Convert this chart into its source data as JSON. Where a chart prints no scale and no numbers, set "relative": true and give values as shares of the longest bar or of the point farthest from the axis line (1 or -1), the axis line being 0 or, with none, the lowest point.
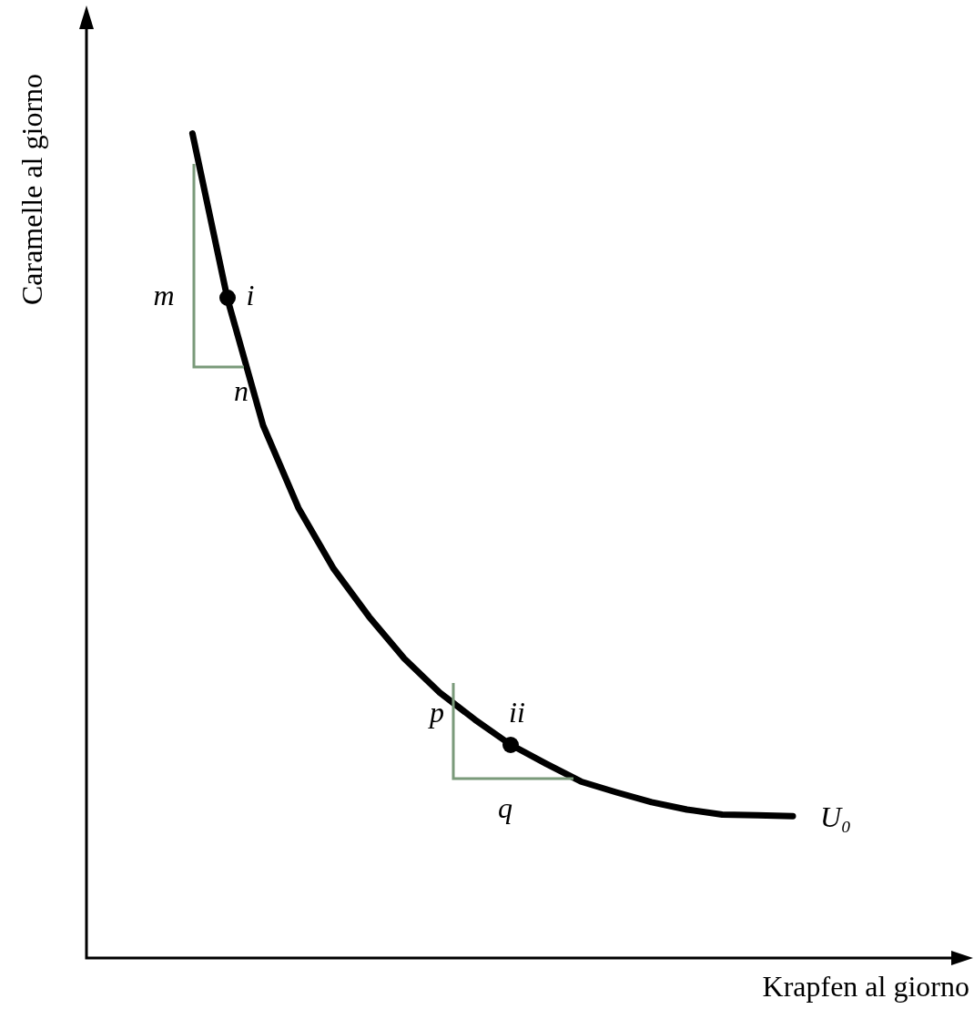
{
  "chart_data": {
    "type": "line",
    "relative": true,
    "xlabel": "Krapfen al giorno",
    "ylabel": "Caramelle al giorno",
    "marker": "none",
    "line_style": "solid",
    "categories": [
      null,
      null,
      null,
      null,
      null,
      null,
      null,
      null,
      null,
      null,
      null,
      null,
      null,
      null,
      null,
      null,
      null,
      null,
      null,
      null,
      null,
      null,
      null,
      null,
      null,
      null
    ],
    "series": [
      {
        "color": "#000000",
        "values": [
          null,
          null,
          null,
          1,
          0.798,
          0.646,
          0.546,
          0.472,
          0.414,
          0.363,
          0.322,
          0.289,
          0.259,
          0.236,
          0.214,
          0.201,
          0.189,
          0.18,
          0.174,
          0.173,
          0.172,
          null,
          null,
          null,
          null,
          null
        ]
      }
    ],
    "annotations": [
      "i",
      "ii",
      "m",
      "n",
      "p",
      "q",
      "U₀"
    ]
  }
}
